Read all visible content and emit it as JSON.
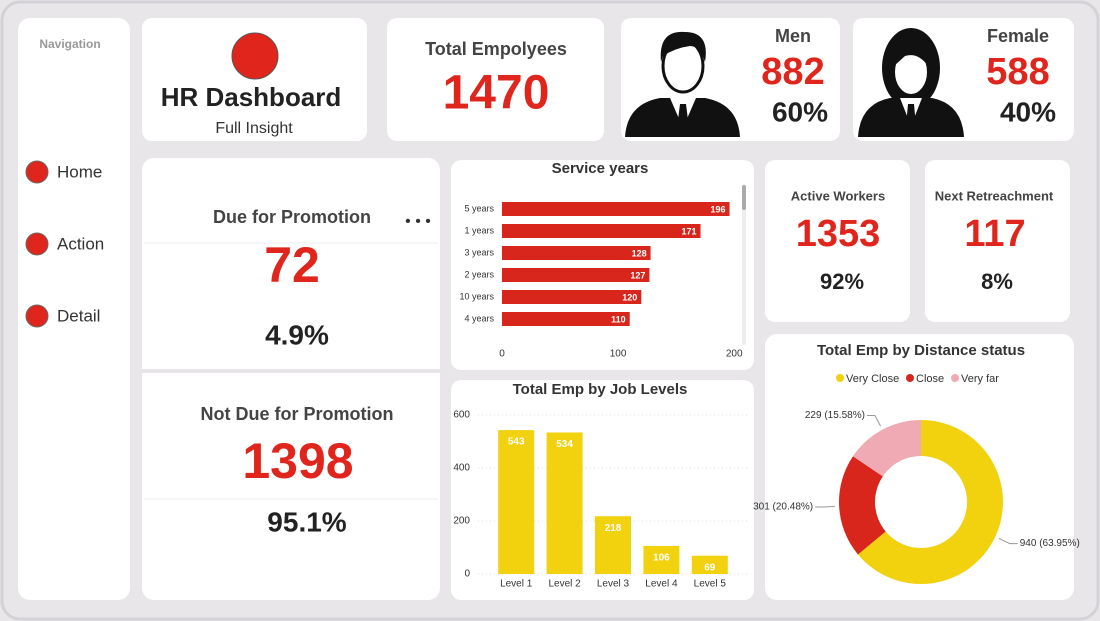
{
  "navigation": {
    "title": "Navigation",
    "items": [
      "Home",
      "Action",
      "Detail"
    ]
  },
  "header": {
    "title": "HR Dashboard",
    "subtitle": "Full Insight"
  },
  "cards": {
    "total": {
      "label": "Total Empolyees",
      "value": "1470"
    },
    "men": {
      "label": "Men",
      "value": "882",
      "share": "60%"
    },
    "female": {
      "label": "Female",
      "value": "588",
      "share": "40%"
    },
    "promotion_due": {
      "label": "Due for Promotion",
      "value": "72",
      "share": "4.9%"
    },
    "promotion_not_due": {
      "label": "Not Due for Promotion",
      "value": "1398",
      "share": "95.1%"
    },
    "active": {
      "label": "Active Workers",
      "value": "1353",
      "share": "92%"
    },
    "retirement": {
      "label": "Next Retreachment",
      "value": "117",
      "share": "8%"
    }
  },
  "chart_data": [
    {
      "type": "hbar",
      "title": "Service years",
      "categories": [
        "5 years",
        "1 years",
        "3 years",
        "2 years",
        "10 years",
        "4 years"
      ],
      "values": [
        196,
        171,
        128,
        127,
        120,
        110
      ],
      "color": "#d9261c",
      "xlim": [
        0,
        205
      ],
      "xticks": [
        0,
        100,
        200
      ]
    },
    {
      "type": "bar",
      "title": "Total Emp by Job Levels",
      "categories": [
        "Level 1",
        "Level 2",
        "Level 3",
        "Level 4",
        "Level 5"
      ],
      "values": [
        543,
        534,
        218,
        106,
        69
      ],
      "color": "#f2d10f",
      "ylim": [
        0,
        600
      ],
      "yticks": [
        0,
        200,
        400,
        600
      ],
      "grid": true
    },
    {
      "type": "pie",
      "title": "Total Emp by Distance status",
      "categories": [
        "Very Close",
        "Close",
        "Very far"
      ],
      "values": [
        940,
        301,
        229
      ],
      "value_labels": [
        "940 (63.95%)",
        "301 (20.48%)",
        "229 (15.58%)"
      ],
      "colors": [
        "#f2d10f",
        "#d9261c",
        "#f0aab3"
      ]
    }
  ]
}
